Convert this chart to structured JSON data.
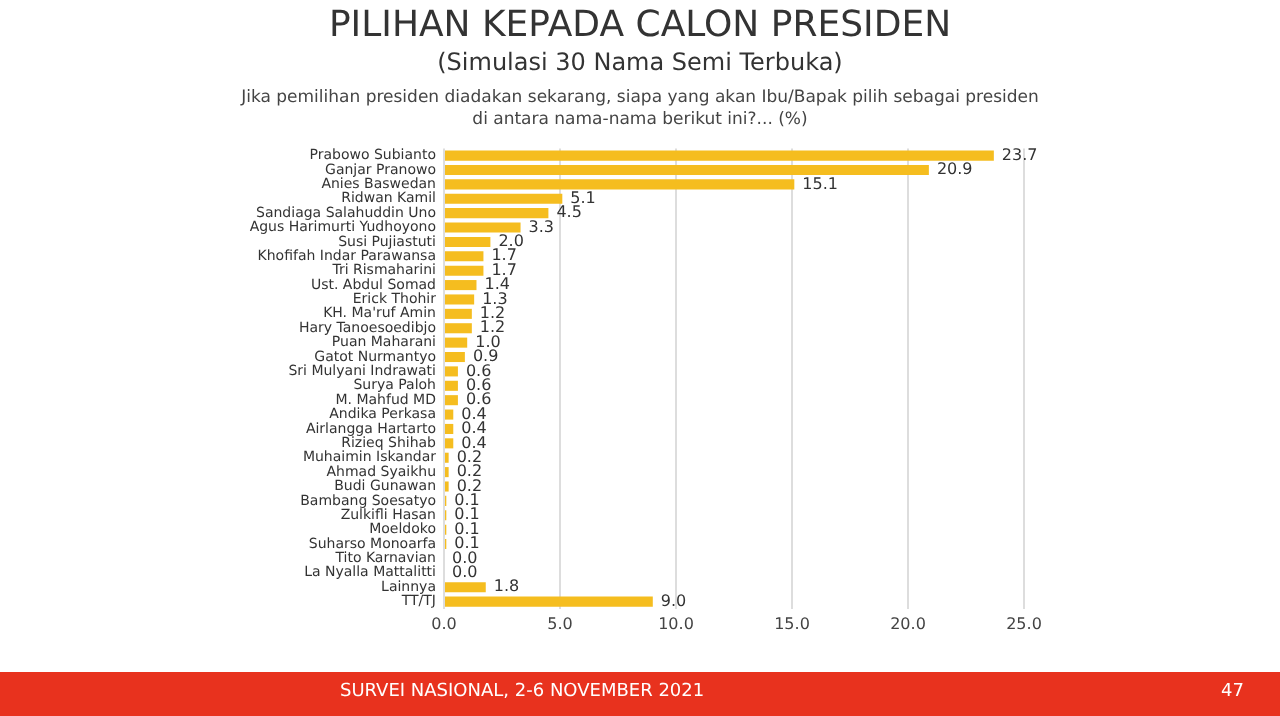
{
  "chart_data": {
    "type": "bar",
    "orientation": "horizontal",
    "title": "PILIHAN KEPADA CALON PRESIDEN",
    "subtitle": "(Simulasi 30 Nama Semi Terbuka)",
    "annotations": [
      "Jika pemilihan presiden diadakan sekarang, siapa yang akan Ibu/Bapak pilih sebagai presiden di antara nama-nama berikut ini?... (%)",
      "SURVEI NASIONAL, 2-6 NOVEMBER 2021",
      "47"
    ],
    "categories": [
      "Prabowo Subianto",
      "Ganjar Pranowo",
      "Anies Baswedan",
      "Ridwan Kamil",
      "Sandiaga Salahuddin Uno",
      "Agus Harimurti Yudhoyono",
      "Susi Pujiastuti",
      "Khofifah Indar Parawansa",
      "Tri Rismaharini",
      "Ust. Abdul Somad",
      "Erick Thohir",
      "KH. Ma'ruf Amin",
      "Hary Tanoesoedibjo",
      "Puan Maharani",
      "Gatot Nurmantyo",
      "Sri Mulyani Indrawati",
      "Surya Paloh",
      "M. Mahfud MD",
      "Andika Perkasa",
      "Airlangga Hartarto",
      "Rizieq Shihab",
      "Muhaimin Iskandar",
      "Ahmad Syaikhu",
      "Budi Gunawan",
      "Bambang Soesatyo",
      "Zulkifli Hasan",
      "Moeldoko",
      "Suharso Monoarfa",
      "Tito Karnavian",
      "La Nyalla Mattalitti",
      "Lainnya",
      "TT/TJ"
    ],
    "values": [
      23.7,
      20.9,
      15.1,
      5.1,
      4.5,
      3.3,
      2.0,
      1.7,
      1.7,
      1.4,
      1.3,
      1.2,
      1.2,
      1.0,
      0.9,
      0.6,
      0.6,
      0.6,
      0.4,
      0.4,
      0.4,
      0.2,
      0.2,
      0.2,
      0.1,
      0.1,
      0.1,
      0.1,
      0.0,
      0.0,
      1.8,
      9.0
    ],
    "value_labels": [
      "23.7",
      "20.9",
      "15.1",
      "5.1",
      "4.5",
      "3.3",
      "2.0",
      "1.7",
      "1.7",
      "1.4",
      "1.3",
      "1.2",
      "1.2",
      "1.0",
      "0.9",
      "0.6",
      "0.6",
      "0.6",
      "0.4",
      "0.4",
      "0.4",
      "0.2",
      "0.2",
      "0.2",
      "0.1",
      "0.1",
      "0.1",
      "0.1",
      "0.0",
      "0.0",
      "1.8",
      "9.0"
    ],
    "color": "#f5bd1f",
    "xlim": [
      0,
      25
    ],
    "xticks": [
      {
        "value": 0,
        "label": "0.0"
      },
      {
        "value": 5,
        "label": "5.0"
      },
      {
        "value": 10,
        "label": "10.0"
      },
      {
        "value": 15,
        "label": "15.0"
      },
      {
        "value": 20,
        "label": "20.0"
      },
      {
        "value": 25,
        "label": "25.0"
      }
    ],
    "grid": "x",
    "legend": false
  }
}
